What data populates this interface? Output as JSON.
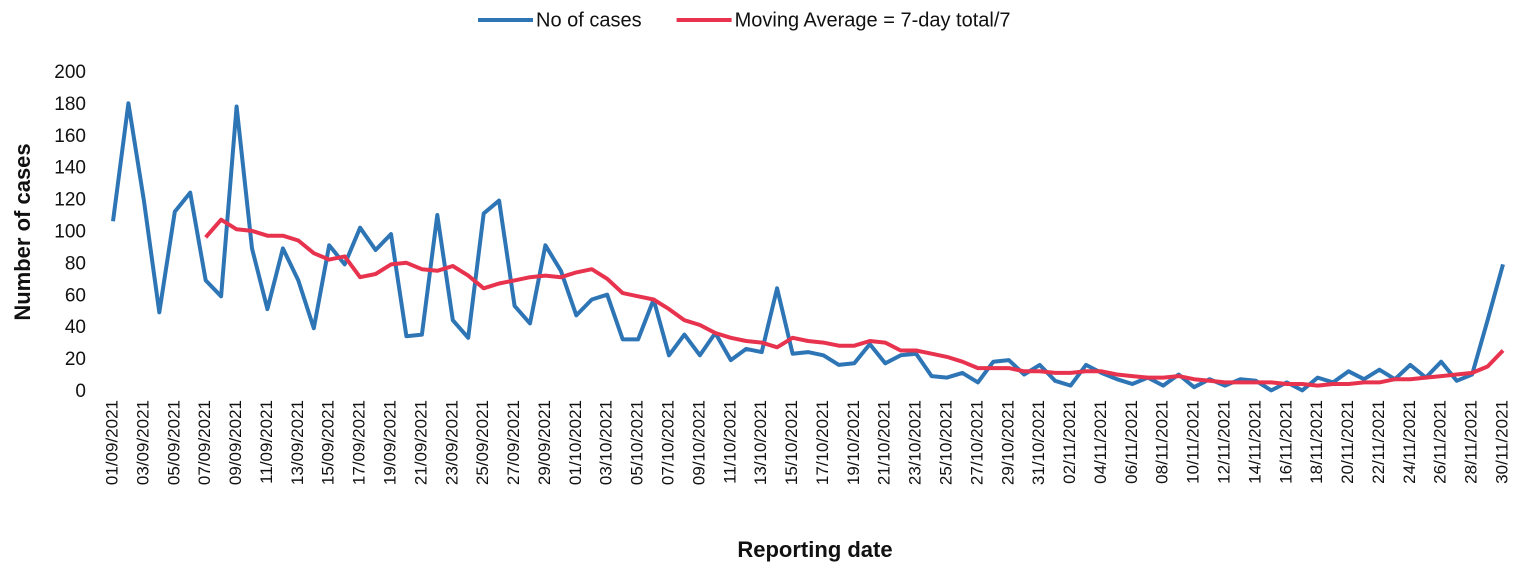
{
  "chart_data": {
    "type": "line",
    "x_label": "Reporting date",
    "y_label": "Number of cases",
    "categories": [
      "01/09/2021",
      null,
      "03/09/2021",
      null,
      "05/09/2021",
      null,
      "07/09/2021",
      null,
      "09/09/2021",
      null,
      "11/09/2021",
      null,
      "13/09/2021",
      null,
      "15/09/2021",
      null,
      "17/09/2021",
      null,
      "19/09/2021",
      null,
      "21/09/2021",
      null,
      "23/09/2021",
      null,
      "25/09/2021",
      null,
      "27/09/2021",
      null,
      "29/09/2021",
      null,
      "01/10/2021",
      null,
      "03/10/2021",
      null,
      "05/10/2021",
      null,
      "07/10/2021",
      null,
      "09/10/2021",
      null,
      "11/10/2021",
      null,
      "13/10/2021",
      null,
      "15/10/2021",
      null,
      "17/10/2021",
      null,
      "19/10/2021",
      null,
      "21/10/2021",
      null,
      "23/10/2021",
      null,
      "25/10/2021",
      null,
      "27/10/2021",
      null,
      "29/10/2021",
      null,
      "31/10/2021",
      null,
      "02/11/2021",
      null,
      "04/11/2021",
      null,
      "06/11/2021",
      null,
      "08/11/2021",
      null,
      "10/11/2021",
      null,
      "12/11/2021",
      null,
      "14/11/2021",
      null,
      "16/11/2021",
      null,
      "18/11/2021",
      null,
      "20/11/2021",
      null,
      "22/11/2021",
      null,
      "24/11/2021",
      null,
      "26/11/2021",
      null,
      "28/11/2021",
      null,
      "30/11/2021"
    ],
    "series": [
      {
        "name": "No of cases",
        "color": "#2e75b6",
        "values": [
          107,
          181,
          120,
          50,
          113,
          125,
          70,
          60,
          179,
          90,
          52,
          90,
          70,
          40,
          92,
          80,
          103,
          89,
          99,
          35,
          36,
          111,
          45,
          34,
          112,
          120,
          54,
          43,
          92,
          76,
          48,
          58,
          61,
          33,
          33,
          58,
          23,
          36,
          23,
          37,
          20,
          27,
          25,
          65,
          24,
          25,
          23,
          17,
          18,
          30,
          18,
          23,
          24,
          10,
          9,
          12,
          6,
          19,
          20,
          11,
          17,
          7,
          4,
          17,
          12,
          8,
          5,
          9,
          4,
          11,
          3,
          8,
          4,
          8,
          7,
          1,
          6,
          1,
          9,
          6,
          13,
          8,
          14,
          8,
          17,
          9,
          19,
          7,
          11,
          45,
          80
        ]
      },
      {
        "name": "Moving Average = 7-day total/7",
        "color": "#e8334f",
        "values": [
          null,
          null,
          null,
          null,
          null,
          null,
          97,
          108,
          102,
          101,
          98,
          98,
          95,
          87,
          83,
          85,
          72,
          74,
          80,
          81,
          77,
          76,
          79,
          73,
          65,
          68,
          70,
          72,
          73,
          72,
          75,
          77,
          71,
          62,
          60,
          58,
          52,
          45,
          42,
          37,
          34,
          32,
          31,
          28,
          34,
          32,
          31,
          29,
          29,
          32,
          31,
          26,
          26,
          24,
          22,
          19,
          15,
          15,
          15,
          13,
          13,
          12,
          12,
          13,
          13,
          11,
          10,
          9,
          9,
          10,
          8,
          7,
          6,
          6,
          6,
          6,
          5,
          5,
          4,
          5,
          5,
          6,
          6,
          8,
          8,
          9,
          10,
          11,
          12,
          16,
          26
        ]
      }
    ],
    "ylim": [
      0,
      200
    ],
    "yticks": [
      0,
      20,
      40,
      60,
      80,
      100,
      120,
      140,
      160,
      180,
      200
    ],
    "grid": false
  }
}
